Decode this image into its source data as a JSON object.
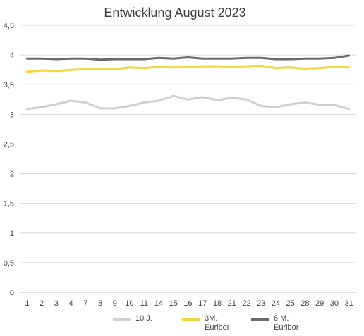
{
  "chart_data": {
    "type": "line",
    "title": "Entwicklung August 2023",
    "xlabel": "",
    "ylabel": "",
    "categories": [
      "1",
      "2",
      "3",
      "4",
      "7",
      "8",
      "9",
      "10",
      "11",
      "14",
      "15",
      "16",
      "17",
      "18",
      "21",
      "22",
      "23",
      "24",
      "25",
      "28",
      "29",
      "30",
      "31"
    ],
    "ylim": [
      0,
      4.5
    ],
    "yticks": [
      "0",
      "0,5",
      "1",
      "1,5",
      "2",
      "2,5",
      "3",
      "3,5",
      "4",
      "4,5"
    ],
    "grid": true,
    "legend_position": "bottom",
    "series": [
      {
        "name": "10 J.",
        "color": "#d0d0d0",
        "values": [
          3.09,
          3.12,
          3.17,
          3.23,
          3.2,
          3.1,
          3.1,
          3.14,
          3.2,
          3.23,
          3.31,
          3.25,
          3.29,
          3.24,
          3.28,
          3.25,
          3.14,
          3.12,
          3.17,
          3.2,
          3.16,
          3.16,
          3.09
        ]
      },
      {
        "name": "3M. Euribor",
        "color": "#f2d541",
        "values": [
          3.72,
          3.74,
          3.73,
          3.75,
          3.76,
          3.77,
          3.76,
          3.79,
          3.78,
          3.8,
          3.79,
          3.8,
          3.81,
          3.81,
          3.8,
          3.81,
          3.82,
          3.78,
          3.79,
          3.77,
          3.78,
          3.8,
          3.79
        ]
      },
      {
        "name": "6 M. Euribor",
        "color": "#6b6b6b",
        "values": [
          3.94,
          3.94,
          3.93,
          3.94,
          3.94,
          3.92,
          3.93,
          3.93,
          3.93,
          3.95,
          3.94,
          3.96,
          3.94,
          3.94,
          3.94,
          3.95,
          3.95,
          3.93,
          3.93,
          3.94,
          3.94,
          3.95,
          3.99
        ]
      }
    ]
  }
}
